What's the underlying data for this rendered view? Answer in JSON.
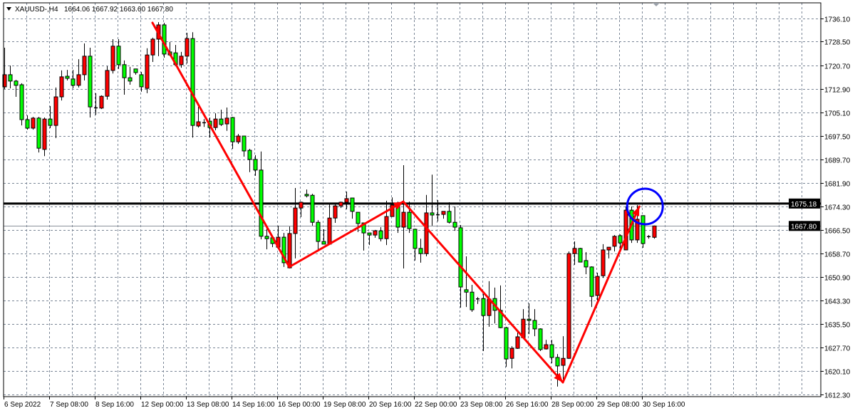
{
  "header": {
    "symbol_timeframe": "XAUUSD-,H4",
    "ohlc": "1664.06 1667.92 1663.60 1667.80",
    "menu_icon": "triangle-down-icon"
  },
  "chart_data": {
    "type": "candlestick",
    "symbol": "XAUUSD-",
    "timeframe": "H4",
    "grid": true,
    "colors": {
      "up": "#ff0000",
      "down": "#00ff00",
      "outline": "#000000",
      "grid": "#7a8696",
      "annotation_arrow": "#ff0000",
      "annotation_circle": "#0000ff",
      "level_line": "#000000",
      "bid_line": "#8a9099"
    },
    "ylim": [
      1610.5,
      1738.9
    ],
    "y_ticks": [
      "1736.10",
      "1728.50",
      "1720.70",
      "1712.90",
      "1705.10",
      "1697.50",
      "1689.70",
      "1681.90",
      "1674.30",
      "1666.50",
      "1658.70",
      "1650.90",
      "1643.30",
      "1635.50",
      "1627.70",
      "1620.10",
      "1612.30"
    ],
    "x_ticks": [
      "6 Sep 2022",
      "7 Sep 08:00",
      "8 Sep 16:00",
      "12 Sep 00:00",
      "13 Sep 08:00",
      "14 Sep 16:00",
      "16 Sep 00:00",
      "19 Sep 08:00",
      "20 Sep 16:00",
      "22 Sep 00:00",
      "23 Sep 08:00",
      "26 Sep 16:00",
      "28 Sep 00:00",
      "29 Sep 08:00",
      "30 Sep 16:00"
    ],
    "x_tick_every_bars": 8,
    "candles_ohlc": [
      [
        1713.6,
        1726.5,
        1712.9,
        1717.6
      ],
      [
        1717.6,
        1720.6,
        1713.1,
        1715.5
      ],
      [
        1715.5,
        1715.9,
        1710.3,
        1714.1
      ],
      [
        1714.3,
        1714.8,
        1700.9,
        1702.8
      ],
      [
        1702.8,
        1704.2,
        1699.5,
        1700.0
      ],
      [
        1700.0,
        1703.7,
        1699.5,
        1703.3
      ],
      [
        1703.3,
        1703.7,
        1692.0,
        1693.4
      ],
      [
        1693.0,
        1703.5,
        1690.8,
        1703.0
      ],
      [
        1703.0,
        1707.3,
        1700.0,
        1700.9
      ],
      [
        1700.9,
        1713.4,
        1696.7,
        1710.3
      ],
      [
        1710.3,
        1719.0,
        1709.1,
        1716.9
      ],
      [
        1717.1,
        1719.2,
        1715.7,
        1716.4
      ],
      [
        1716.2,
        1719.2,
        1713.1,
        1714.1
      ],
      [
        1714.1,
        1722.7,
        1713.4,
        1717.6
      ],
      [
        1717.6,
        1727.9,
        1715.7,
        1723.7
      ],
      [
        1723.7,
        1726.5,
        1703.5,
        1707.0
      ],
      [
        1706.8,
        1711.5,
        1704.4,
        1706.8
      ],
      [
        1706.6,
        1710.8,
        1706.3,
        1710.5
      ],
      [
        1710.5,
        1720.4,
        1709.4,
        1719.0
      ],
      [
        1719.0,
        1729.3,
        1718.0,
        1727.0
      ],
      [
        1727.0,
        1729.3,
        1719.5,
        1720.9
      ],
      [
        1720.9,
        1722.3,
        1711.0,
        1716.6
      ],
      [
        1716.6,
        1720.2,
        1714.3,
        1715.5
      ],
      [
        1719.5,
        1719.5,
        1717.6,
        1718.3
      ],
      [
        1717.6,
        1718.5,
        1712.0,
        1713.6
      ],
      [
        1713.1,
        1726.3,
        1711.5,
        1724.1
      ],
      [
        1724.1,
        1729.8,
        1721.8,
        1729.3
      ],
      [
        1729.3,
        1734.9,
        1723.7,
        1734.0
      ],
      [
        1734.0,
        1734.7,
        1723.2,
        1724.4
      ],
      [
        1725.1,
        1728.4,
        1723.7,
        1724.1
      ],
      [
        1724.8,
        1727.4,
        1720.4,
        1720.9
      ],
      [
        1720.9,
        1725.1,
        1719.9,
        1723.7
      ],
      [
        1723.7,
        1731.4,
        1721.3,
        1729.5
      ],
      [
        1729.5,
        1731.6,
        1696.9,
        1700.9
      ],
      [
        1700.7,
        1707.0,
        1700.2,
        1702.1
      ],
      [
        1701.9,
        1703.0,
        1700.4,
        1701.9
      ],
      [
        1702.3,
        1703.5,
        1696.9,
        1700.2
      ],
      [
        1700.2,
        1704.9,
        1699.3,
        1703.0
      ],
      [
        1703.0,
        1706.1,
        1700.7,
        1701.2
      ],
      [
        1701.4,
        1706.8,
        1699.1,
        1703.3
      ],
      [
        1703.5,
        1703.7,
        1693.2,
        1695.5
      ],
      [
        1695.5,
        1698.1,
        1694.8,
        1697.4
      ],
      [
        1697.4,
        1697.4,
        1690.6,
        1692.5
      ],
      [
        1692.7,
        1693.2,
        1685.5,
        1689.7
      ],
      [
        1689.7,
        1691.1,
        1684.3,
        1686.2
      ],
      [
        1686.2,
        1692.3,
        1663.4,
        1664.4
      ],
      [
        1664.4,
        1667.6,
        1660.1,
        1663.6
      ],
      [
        1663.9,
        1663.9,
        1660.8,
        1662.0
      ],
      [
        1660.8,
        1667.9,
        1660.1,
        1664.1
      ],
      [
        1664.1,
        1665.5,
        1654.3,
        1655.7
      ],
      [
        1654.0,
        1667.6,
        1653.8,
        1665.3
      ],
      [
        1665.3,
        1680.3,
        1657.1,
        1673.7
      ],
      [
        1673.7,
        1675.8,
        1670.7,
        1675.6
      ],
      [
        1678.2,
        1679.8,
        1677.2,
        1677.7
      ],
      [
        1677.9,
        1678.4,
        1667.9,
        1669.0
      ],
      [
        1669.0,
        1669.7,
        1659.4,
        1662.7
      ],
      [
        1662.7,
        1666.7,
        1661.8,
        1661.8
      ],
      [
        1661.8,
        1674.9,
        1661.8,
        1670.4
      ],
      [
        1670.4,
        1674.9,
        1668.8,
        1674.4
      ],
      [
        1674.4,
        1675.8,
        1673.7,
        1675.6
      ],
      [
        1675.6,
        1679.1,
        1673.3,
        1676.8
      ],
      [
        1677.0,
        1677.0,
        1670.2,
        1672.6
      ],
      [
        1672.3,
        1672.3,
        1665.8,
        1668.6
      ],
      [
        1668.8,
        1668.8,
        1659.7,
        1665.5
      ],
      [
        1665.5,
        1665.5,
        1661.5,
        1664.8
      ],
      [
        1664.8,
        1666.5,
        1663.9,
        1666.2
      ],
      [
        1666.2,
        1667.4,
        1662.7,
        1663.6
      ],
      [
        1663.6,
        1676.1,
        1661.5,
        1670.9
      ],
      [
        1670.9,
        1677.2,
        1670.9,
        1674.7
      ],
      [
        1674.7,
        1675.8,
        1665.5,
        1667.4
      ],
      [
        1667.4,
        1687.8,
        1653.8,
        1672.3
      ],
      [
        1672.3,
        1675.8,
        1665.5,
        1666.9
      ],
      [
        1666.7,
        1666.9,
        1656.4,
        1660.4
      ],
      [
        1660.4,
        1663.6,
        1655.7,
        1658.7
      ],
      [
        1658.7,
        1678.0,
        1657.8,
        1672.1
      ],
      [
        1672.1,
        1684.7,
        1667.9,
        1671.4
      ],
      [
        1671.6,
        1676.3,
        1669.3,
        1671.6
      ],
      [
        1671.6,
        1672.6,
        1670.2,
        1672.6
      ],
      [
        1672.6,
        1675.6,
        1668.6,
        1669.0
      ],
      [
        1669.0,
        1674.2,
        1666.2,
        1667.4
      ],
      [
        1667.2,
        1668.1,
        1640.9,
        1647.7
      ],
      [
        1646.8,
        1657.8,
        1641.1,
        1646.0
      ],
      [
        1646.0,
        1648.4,
        1639.5,
        1640.2
      ],
      [
        1643.9,
        1644.4,
        1642.1,
        1643.9
      ],
      [
        1643.9,
        1645.4,
        1626.6,
        1638.3
      ],
      [
        1638.3,
        1649.6,
        1634.6,
        1643.7
      ],
      [
        1643.9,
        1647.5,
        1635.7,
        1640.0
      ],
      [
        1640.0,
        1648.2,
        1634.1,
        1634.3
      ],
      [
        1634.3,
        1634.6,
        1621.4,
        1624.0
      ],
      [
        1624.2,
        1628.2,
        1620.9,
        1627.5
      ],
      [
        1627.5,
        1632.7,
        1627.3,
        1631.3
      ],
      [
        1631.0,
        1640.4,
        1631.0,
        1637.1
      ],
      [
        1637.1,
        1642.3,
        1632.2,
        1636.7
      ],
      [
        1636.7,
        1640.4,
        1631.5,
        1633.9
      ],
      [
        1633.9,
        1634.1,
        1626.6,
        1627.1
      ],
      [
        1627.3,
        1630.3,
        1627.1,
        1628.7
      ],
      [
        1628.7,
        1630.3,
        1622.6,
        1624.5
      ],
      [
        1624.5,
        1625.6,
        1614.9,
        1621.7
      ],
      [
        1621.9,
        1631.5,
        1616.0,
        1624.2
      ],
      [
        1624.2,
        1659.4,
        1624.0,
        1658.7
      ],
      [
        1658.7,
        1662.7,
        1655.0,
        1660.4
      ],
      [
        1660.4,
        1660.6,
        1655.9,
        1655.9
      ],
      [
        1656.4,
        1659.2,
        1651.9,
        1654.3
      ],
      [
        1654.3,
        1654.5,
        1641.1,
        1644.6
      ],
      [
        1644.9,
        1652.4,
        1643.2,
        1651.2
      ],
      [
        1651.4,
        1661.8,
        1650.7,
        1659.9
      ],
      [
        1659.9,
        1660.8,
        1657.1,
        1660.8
      ],
      [
        1661.1,
        1664.8,
        1659.4,
        1664.4
      ],
      [
        1664.6,
        1665.0,
        1659.2,
        1662.2
      ],
      [
        1659.9,
        1674.2,
        1659.9,
        1673.0
      ],
      [
        1673.0,
        1674.2,
        1662.2,
        1663.2
      ],
      [
        1663.2,
        1674.7,
        1662.2,
        1670.0
      ],
      [
        1671.2,
        1671.2,
        1660.6,
        1662.0
      ],
      [
        1664.4,
        1664.8,
        1663.6,
        1664.4
      ],
      [
        1664.06,
        1667.92,
        1663.6,
        1667.8
      ]
    ],
    "horizontal_level": {
      "price": 1675.18,
      "label": "1675.18"
    },
    "bid_line": {
      "price": 1667.8,
      "label": "1667.80"
    },
    "annotation_path": [
      {
        "bar": 26,
        "price": 1734.7
      },
      {
        "bar": 50,
        "price": 1654.3
      },
      {
        "bar": 70,
        "price": 1675.8
      },
      {
        "bar": 98,
        "price": 1616.3
      },
      {
        "bar": 111.4,
        "price": 1674.2
      }
    ],
    "annotation_circle_center": {
      "bar": 112.4,
      "price": 1674.2
    }
  }
}
